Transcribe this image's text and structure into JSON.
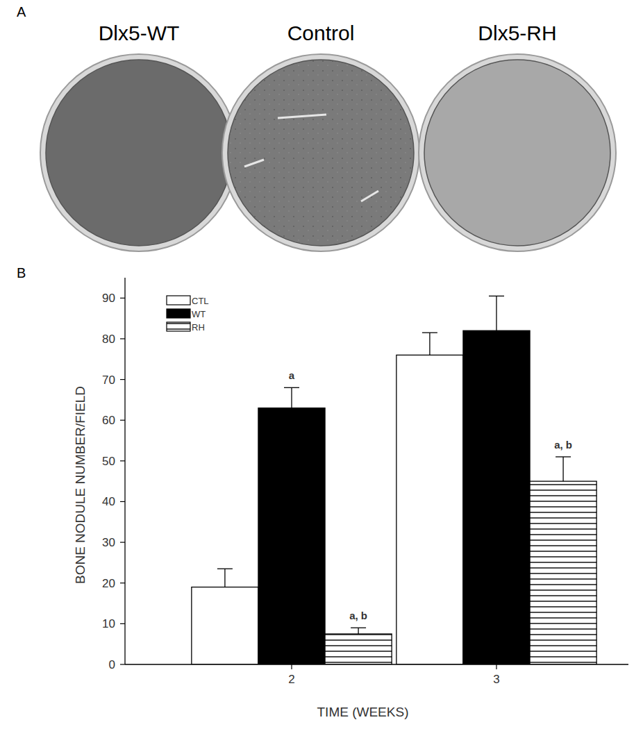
{
  "panel_a": {
    "label": "A",
    "dishes": [
      "Dlx5-WT",
      "Control",
      "Dlx5-RH"
    ]
  },
  "panel_b": {
    "label": "B"
  },
  "chart_data": {
    "type": "bar",
    "x_label": "TIME (WEEKS)",
    "y_label": "BONE NODULE NUMBER/FIELD",
    "categories": [
      "2",
      "3"
    ],
    "series": [
      {
        "name": "CTL",
        "color": "#ffffff",
        "values": [
          19,
          76
        ],
        "errors": [
          4.5,
          5.5
        ],
        "significance": [
          null,
          null
        ]
      },
      {
        "name": "WT",
        "color": "#000000",
        "values": [
          63,
          82
        ],
        "errors": [
          5,
          8.5
        ],
        "significance": [
          "a",
          null
        ]
      },
      {
        "name": "RH",
        "color": "#000000",
        "line_style": "hatch",
        "values": [
          7.5,
          45
        ],
        "errors": [
          1.5,
          6
        ],
        "significance": [
          "a, b",
          "a, b"
        ]
      }
    ],
    "ylim": [
      0,
      95
    ],
    "yticks": [
      0,
      10,
      20,
      30,
      40,
      50,
      60,
      70,
      80,
      90
    ],
    "legend": "upper left",
    "grid": false
  }
}
